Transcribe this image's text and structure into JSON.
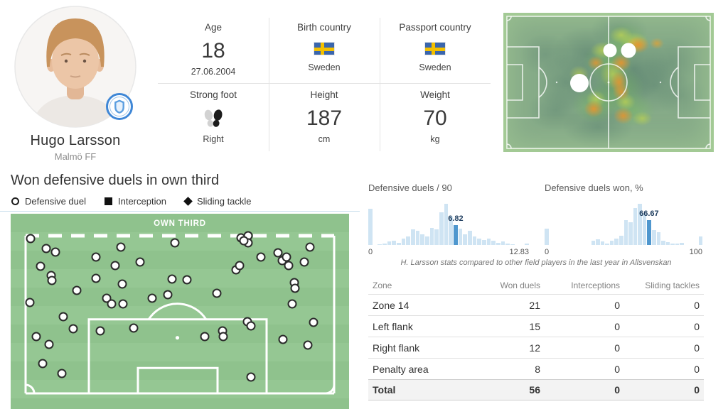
{
  "player": {
    "name": "Hugo Larsson",
    "team": "Malmö FF"
  },
  "profile": {
    "age": {
      "label": "Age",
      "value": "18",
      "sub": "27.06.2004"
    },
    "birth_country": {
      "label": "Birth country",
      "value": "Sweden"
    },
    "passport_country": {
      "label": "Passport country",
      "value": "Sweden"
    },
    "strong_foot": {
      "label": "Strong foot",
      "value": "Right"
    },
    "height": {
      "label": "Height",
      "value": "187",
      "sub": "cm"
    },
    "weight": {
      "label": "Weight",
      "value": "70",
      "sub": "kg"
    }
  },
  "heatmap": {
    "markers": [
      {
        "x": 50.6,
        "y": 27.0,
        "r": 9.5
      },
      {
        "x": 59.6,
        "y": 27.0,
        "r": 10.5
      },
      {
        "x": 36.3,
        "y": 50.5,
        "r": 13
      }
    ]
  },
  "pitch_map": {
    "title": "Won defensive duels in own third",
    "zone_label": "OWN THIRD",
    "legend": [
      {
        "symbol": "circle",
        "label": "Defensive duel"
      },
      {
        "symbol": "square",
        "label": "Interception"
      },
      {
        "symbol": "diamond",
        "label": "Sliding tackle"
      }
    ],
    "markers": [
      [
        5.9,
        12.8
      ],
      [
        10.5,
        17.9
      ],
      [
        13.2,
        19.7
      ],
      [
        8.8,
        27.0
      ],
      [
        11.9,
        31.8
      ],
      [
        12.2,
        34.3
      ],
      [
        19.5,
        39.4
      ],
      [
        25.2,
        22.3
      ],
      [
        25.2,
        33.2
      ],
      [
        30.8,
        26.6
      ],
      [
        32.5,
        17.2
      ],
      [
        32.9,
        36.1
      ],
      [
        38.2,
        24.8
      ],
      [
        28.3,
        43.4
      ],
      [
        29.8,
        46.0
      ],
      [
        33.1,
        46.0
      ],
      [
        41.9,
        43.1
      ],
      [
        46.5,
        41.6
      ],
      [
        47.6,
        33.6
      ],
      [
        48.6,
        15.0
      ],
      [
        52.0,
        33.9
      ],
      [
        61.0,
        40.9
      ],
      [
        66.7,
        28.8
      ],
      [
        67.7,
        26.6
      ],
      [
        68.1,
        12.4
      ],
      [
        70.2,
        11.3
      ],
      [
        70.2,
        15.0
      ],
      [
        74.0,
        22.3
      ],
      [
        79.0,
        20.1
      ],
      [
        80.3,
        24.1
      ],
      [
        81.6,
        22.3
      ],
      [
        82.2,
        26.6
      ],
      [
        88.5,
        17.2
      ],
      [
        86.8,
        24.8
      ],
      [
        83.9,
        35.4
      ],
      [
        84.1,
        38.3
      ],
      [
        83.2,
        46.0
      ],
      [
        5.7,
        45.6
      ],
      [
        15.5,
        52.9
      ],
      [
        18.4,
        58.8
      ],
      [
        7.5,
        62.8
      ],
      [
        11.3,
        66.8
      ],
      [
        9.4,
        76.6
      ],
      [
        15.1,
        81.8
      ],
      [
        26.4,
        59.9
      ],
      [
        36.3,
        58.4
      ],
      [
        57.4,
        62.8
      ],
      [
        62.7,
        59.9
      ],
      [
        62.9,
        62.8
      ],
      [
        70.0,
        55.1
      ],
      [
        71.1,
        57.3
      ],
      [
        80.5,
        64.2
      ],
      [
        87.8,
        67.2
      ],
      [
        89.5,
        55.5
      ],
      [
        71.1,
        83.6
      ],
      [
        68.9,
        13.8
      ]
    ]
  },
  "chart_data": [
    {
      "type": "bar",
      "title": "Defensive duels / 90",
      "x_range": [
        0,
        12.83
      ],
      "x_min_label": "0",
      "x_max_label": "12.83",
      "player_value": 6.82,
      "player_value_label": "6.82",
      "highlight_index": 18,
      "values": [
        88,
        0,
        2,
        4,
        8,
        10,
        6,
        15,
        21,
        38,
        34,
        26,
        20,
        42,
        38,
        80,
        100,
        69,
        49,
        40,
        26,
        34,
        20,
        16,
        12,
        16,
        10,
        6,
        8,
        4,
        2,
        0,
        0,
        3
      ]
    },
    {
      "type": "bar",
      "title": "Defensive duels won, %",
      "x_range": [
        0,
        100
      ],
      "x_min_label": "0",
      "x_max_label": "100",
      "player_value": 66.67,
      "player_value_label": "66.67",
      "highlight_index": 22,
      "values": [
        40,
        0,
        0,
        0,
        0,
        0,
        0,
        0,
        0,
        0,
        10,
        13,
        8,
        4,
        11,
        15,
        23,
        60,
        56,
        90,
        100,
        76,
        60,
        37,
        31,
        11,
        7,
        4,
        3,
        5,
        0,
        0,
        0,
        20
      ]
    }
  ],
  "comparison_caption": "H. Larsson stats compared to other field players in the last year in Allsvenskan",
  "table": {
    "headers": [
      "Zone",
      "Won duels",
      "Interceptions",
      "Sliding tackles"
    ],
    "rows": [
      [
        "Zone 14",
        "21",
        "0",
        "0"
      ],
      [
        "Left flank",
        "15",
        "0",
        "0"
      ],
      [
        "Right flank",
        "12",
        "0",
        "0"
      ],
      [
        "Penalty area",
        "8",
        "0",
        "0"
      ]
    ],
    "total_row": [
      "Total",
      "56",
      "0",
      "0"
    ]
  },
  "colors": {
    "highlight_blue": "#4f97ce",
    "bar_blue": "#cfe4f3",
    "value_label_navy": "#1d3c5e",
    "pitch_green": "#8fc28d",
    "flag_blue": "#3a66ad",
    "flag_yellow": "#f3c000"
  }
}
